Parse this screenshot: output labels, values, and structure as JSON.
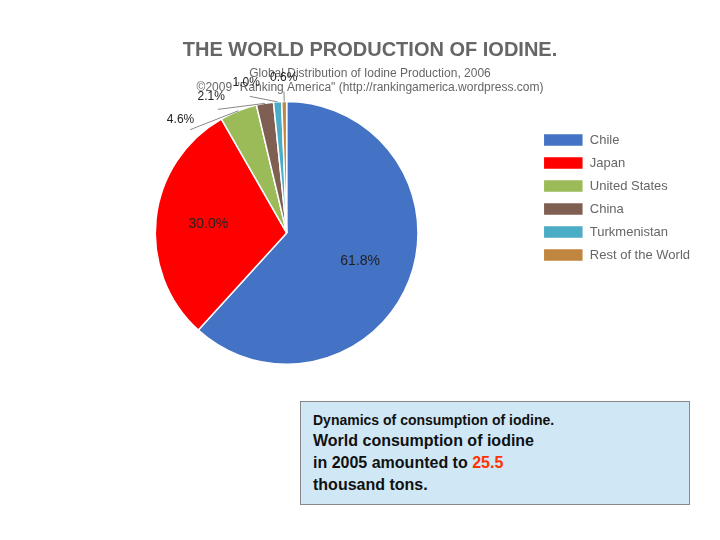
{
  "chart_data": {
    "type": "pie",
    "title": "THE WORLD PRODUCTION OF IODINE.",
    "subtitle": [
      "Global Distribution of Iodine Production, 2006",
      "©2009 \"Ranking America\" (http://rankingamerica.wordpress.com)"
    ],
    "categories": [
      "Chile",
      "Japan",
      "United States",
      "China",
      "Turkmenistan",
      "Rest of the World"
    ],
    "values": [
      61.8,
      30.0,
      4.6,
      2.1,
      1.0,
      0.6
    ],
    "value_labels": [
      "61.8%",
      "30.0%",
      "4.6%",
      "2.1%",
      "1.0%",
      "0.6%"
    ],
    "colors": [
      "#4472C4",
      "#FF0000",
      "#9BBB59",
      "#7F5F52",
      "#4BACC6",
      "#C0853F"
    ],
    "data_labels": true,
    "legend": "right",
    "annotations": [
      [
        {
          "text": "Dynamics of consumption of iodine."
        }
      ],
      [
        {
          "text": "World consumption of iodine"
        }
      ],
      [
        {
          "text": "in 2005 amounted to "
        },
        {
          "text": "25.5",
          "color": "#FF3300"
        }
      ],
      [
        {
          "text": "thousand tons."
        }
      ]
    ]
  }
}
